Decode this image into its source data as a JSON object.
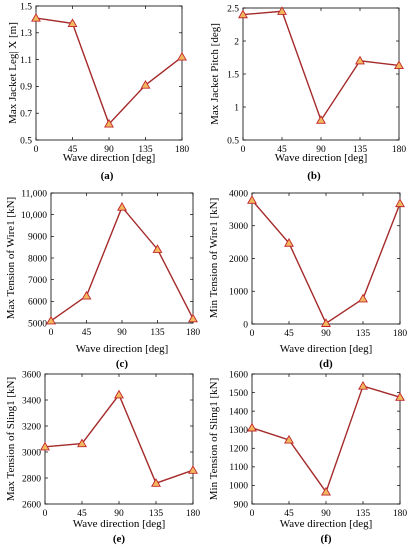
{
  "chart_data": [
    {
      "type": "line",
      "panel_label": "(a)",
      "xlabel": "Wave direction [deg]",
      "ylabel": "Max Jacket Leg| X [m]",
      "x": [
        0,
        45,
        90,
        135,
        180
      ],
      "y": [
        1.41,
        1.37,
        0.62,
        0.91,
        1.12
      ],
      "xlim": [
        0,
        180
      ],
      "ylim": [
        0.5,
        1.5
      ],
      "xticks": [
        0,
        45,
        90,
        135,
        180
      ],
      "yticks": [
        0.5,
        0.7,
        0.9,
        1.1,
        1.3,
        1.5
      ],
      "ytick_labels": [
        "0.5",
        "0.7",
        "0.9",
        "1.1",
        "1.3",
        "1.5"
      ],
      "grid": false,
      "line_color": "#a52a2a",
      "marker": "triangle",
      "marker_fill": "#f2b85e",
      "marker_edge": "#c0262c"
    },
    {
      "type": "line",
      "panel_label": "(b)",
      "xlabel": "Wave direction [deg]",
      "ylabel": "Max Jacket Pitch [deg]",
      "x": [
        0,
        45,
        90,
        135,
        180
      ],
      "y": [
        2.4,
        2.45,
        0.8,
        1.7,
        1.63
      ],
      "xlim": [
        0,
        180
      ],
      "ylim": [
        0.5,
        2.5
      ],
      "xticks": [
        0,
        45,
        90,
        135,
        180
      ],
      "yticks": [
        0.5,
        1,
        1.5,
        2,
        2.5
      ],
      "ytick_labels": [
        "0.5",
        "1",
        "1.5",
        "2",
        "2.5"
      ],
      "grid": false,
      "line_color": "#a52a2a",
      "marker": "triangle",
      "marker_fill": "#f2b85e",
      "marker_edge": "#c0262c"
    },
    {
      "type": "line",
      "panel_label": "(c)",
      "xlabel": "Wave direction [deg]",
      "ylabel": "Max Tension of Wire1 [kN]",
      "x": [
        0,
        45,
        90,
        135,
        180
      ],
      "y": [
        5100,
        6250,
        10350,
        8400,
        5200
      ],
      "xlim": [
        0,
        180
      ],
      "ylim": [
        5000,
        11000
      ],
      "xticks": [
        0,
        45,
        90,
        135,
        180
      ],
      "yticks": [
        5000,
        6000,
        7000,
        8000,
        9000,
        10000,
        11000
      ],
      "ytick_labels": [
        "5000",
        "6000",
        "7000",
        "8000",
        "9000",
        "10,000",
        "11,000"
      ],
      "grid": false,
      "line_color": "#a52a2a",
      "marker": "triangle",
      "marker_fill": "#f2b85e",
      "marker_edge": "#c0262c"
    },
    {
      "type": "line",
      "panel_label": "(d)",
      "xlabel": "Wave direction [deg]",
      "ylabel": "Min Tension of Wire1 [kN]",
      "x": [
        0,
        45,
        90,
        135,
        180
      ],
      "y": [
        3780,
        2470,
        20,
        770,
        3680
      ],
      "xlim": [
        0,
        180
      ],
      "ylim": [
        0,
        4000
      ],
      "xticks": [
        0,
        45,
        90,
        135,
        180
      ],
      "yticks": [
        0,
        1000,
        2000,
        3000,
        4000
      ],
      "ytick_labels": [
        "0",
        "1000",
        "2000",
        "3000",
        "4000"
      ],
      "grid": false,
      "line_color": "#a52a2a",
      "marker": "triangle",
      "marker_fill": "#f2b85e",
      "marker_edge": "#c0262c"
    },
    {
      "type": "line",
      "panel_label": "(e)",
      "xlabel": "Wave direction [deg]",
      "ylabel": "Max Tension of Sling1 [kN]",
      "x": [
        0,
        45,
        90,
        135,
        180
      ],
      "y": [
        3040,
        3065,
        3440,
        2760,
        2860
      ],
      "xlim": [
        0,
        180
      ],
      "ylim": [
        2600,
        3600
      ],
      "xticks": [
        0,
        45,
        90,
        135,
        180
      ],
      "yticks": [
        2600,
        2800,
        3000,
        3200,
        3400,
        3600
      ],
      "ytick_labels": [
        "2600",
        "2800",
        "3000",
        "3200",
        "3400",
        "3600"
      ],
      "grid": false,
      "line_color": "#a52a2a",
      "marker": "triangle",
      "marker_fill": "#f2b85e",
      "marker_edge": "#c0262c"
    },
    {
      "type": "line",
      "panel_label": "(f)",
      "xlabel": "Wave direction [deg]",
      "ylabel": "Min Tension of Sling1 [kN]",
      "x": [
        0,
        45,
        90,
        135,
        180
      ],
      "y": [
        1310,
        1245,
        965,
        1535,
        1475
      ],
      "xlim": [
        0,
        180
      ],
      "ylim": [
        900,
        1600
      ],
      "xticks": [
        0,
        45,
        90,
        135,
        180
      ],
      "yticks": [
        900,
        1000,
        1100,
        1200,
        1300,
        1400,
        1500,
        1600
      ],
      "ytick_labels": [
        "900",
        "1000",
        "1100",
        "1200",
        "1300",
        "1400",
        "1500",
        "1600"
      ],
      "grid": false,
      "line_color": "#a52a2a",
      "marker": "triangle",
      "marker_fill": "#f2b85e",
      "marker_edge": "#c0262c"
    }
  ]
}
